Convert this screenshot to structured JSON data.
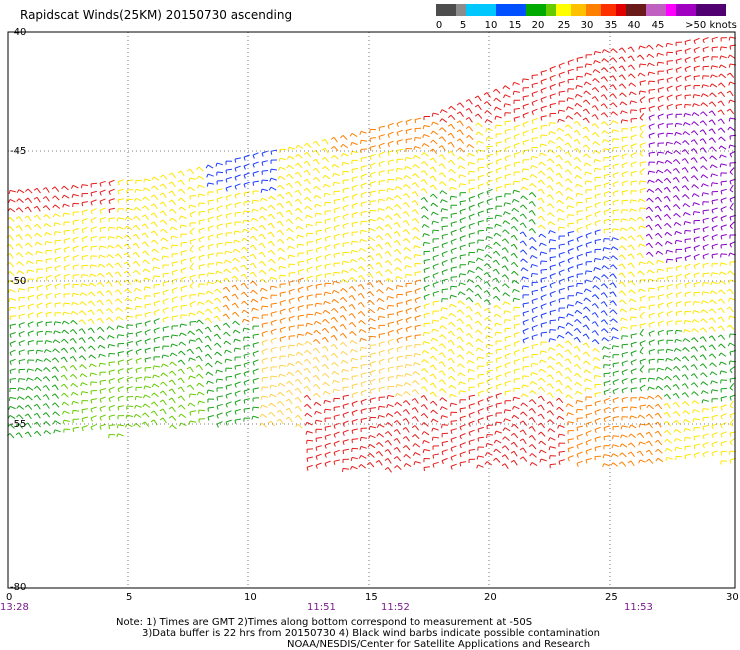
{
  "title": "Rapidscat Winds(25KM) 20150730 ascending",
  "legend": {
    "colors": [
      "#4d4d4d",
      "#8c8c8c",
      "#00c8ff",
      "#0050ff",
      "#00aa00",
      "#66cc00",
      "#ffff00",
      "#ffc000",
      "#ff7f00",
      "#ff3000",
      "#e00000",
      "#6b1a1a",
      "#c060c0",
      "#ff00ff",
      "#a000c0",
      "#500070"
    ],
    "labels": [
      "0",
      "5",
      "10",
      "15",
      "20",
      "25",
      "30",
      "35",
      "40",
      "45",
      ">50 knots"
    ]
  },
  "axes": {
    "y_ticks": [
      "-40",
      "-45",
      "-50",
      "-55",
      "-80"
    ],
    "x_ticks": [
      "0",
      "5",
      "10",
      "15",
      "20",
      "25",
      "30"
    ]
  },
  "times": [
    "13:28",
    "11:51",
    "11:52",
    "11:53"
  ],
  "notes": {
    "line1": "Note: 1) Times are GMT 2)Times along bottom correspond to measurement at -50S",
    "line2": "3)Data buffer is 22 hrs from 20150730 4) Black wind barbs indicate possible contamination",
    "line3": "NOAA/NESDIS/Center for Satellite Applications and Research"
  }
}
